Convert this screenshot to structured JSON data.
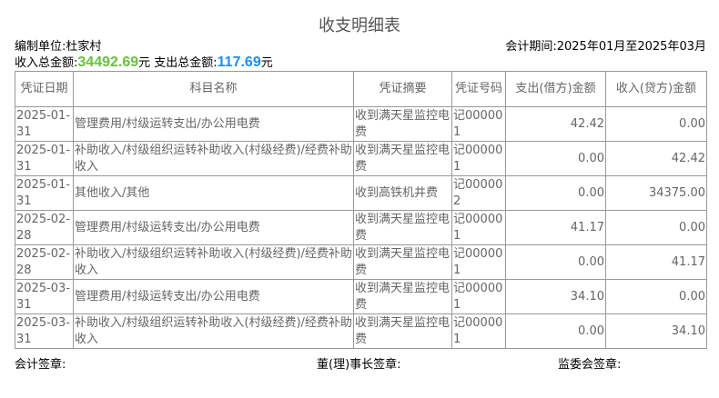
{
  "title": "收支明细表",
  "unit_label": "编制单位:杜家村",
  "period_label": "会计期间:2025年01月至2025年03月",
  "totals": {
    "income_label": "收入总金额:",
    "income_value": "34492.69",
    "income_suffix": "元",
    "expense_label": " 支出总金额:",
    "expense_value": "117.69",
    "expense_suffix": "元",
    "income_color": "#67c23a",
    "expense_color": "#1890ff"
  },
  "columns": [
    "凭证日期",
    "科目名称",
    "凭证摘要",
    "凭证号码",
    "支出(借方)金额",
    "收入(贷方)金额"
  ],
  "rows": [
    [
      "2025-01-31",
      "管理费用/村级运转支出/办公用电费",
      "收到满天星监控电费",
      "记000001",
      "42.42",
      "0.00"
    ],
    [
      "2025-01-31",
      "补助收入/村级组织运转补助收入(村级经费)/经费补助收入",
      "收到满天星监控电费",
      "记000001",
      "0.00",
      "42.42"
    ],
    [
      "2025-01-31",
      "其他收入/其他",
      "收到高铁机井费",
      "记000002",
      "0.00",
      "34375.00"
    ],
    [
      "2025-02-28",
      "管理费用/村级运转支出/办公用电费",
      "收到满天星监控电费",
      "记000001",
      "41.17",
      "0.00"
    ],
    [
      "2025-02-28",
      "补助收入/村级组织运转补助收入(村级经费)/经费补助收入",
      "收到满天星监控电费",
      "记000001",
      "0.00",
      "41.17"
    ],
    [
      "2025-03-31",
      "管理费用/村级运转支出/办公用电费",
      "收到满天星监控电费",
      "记000001",
      "34.10",
      "0.00"
    ],
    [
      "2025-03-31",
      "补助收入/村级组织运转补助收入(村级经费)/经费补助收入",
      "收到满天星监控电费",
      "记000001",
      "0.00",
      "34.10"
    ]
  ],
  "signatures": {
    "accountant": "会计签章:",
    "chairman": "董(理)事长签章:",
    "supervisor": "监委会签章:"
  }
}
